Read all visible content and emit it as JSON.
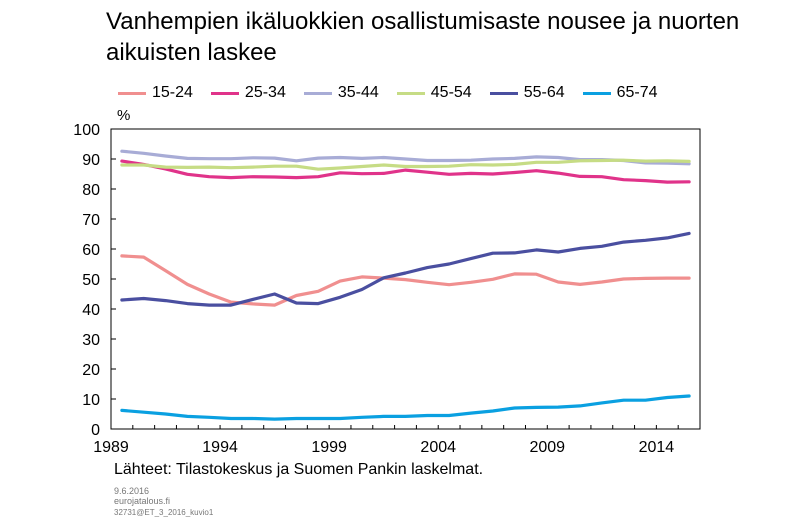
{
  "title": "Vanhempien ikäluokkien osallistumisaste nousee ja nuorten aikuisten laskee",
  "unit": "%",
  "source": "Lähteet: Tilastokeskus ja Suomen Pankin laskelmat.",
  "footer": {
    "date": "9.6.2016",
    "site": "eurojatalous.fi",
    "code": "32731@ET_3_2016_kuvio1"
  },
  "chart_data": {
    "type": "line",
    "x": [
      1989,
      1990,
      1991,
      1992,
      1993,
      1994,
      1995,
      1996,
      1997,
      1998,
      1999,
      2000,
      2001,
      2002,
      2003,
      2004,
      2005,
      2006,
      2007,
      2008,
      2009,
      2010,
      2011,
      2012,
      2013,
      2014,
      2015
    ],
    "xticks": [
      1989,
      1994,
      1999,
      2004,
      2009,
      2014
    ],
    "xlim": [
      1989,
      2016
    ],
    "ylim": [
      0,
      100
    ],
    "yticks": [
      0,
      10,
      20,
      30,
      40,
      50,
      60,
      70,
      80,
      90,
      100
    ],
    "grid": false,
    "legend_position": "top",
    "series": [
      {
        "name": "15-24",
        "color": "#f08f8f",
        "values": [
          57.7,
          57.3,
          52.8,
          48.2,
          45.0,
          42.3,
          41.7,
          41.3,
          44.5,
          45.9,
          49.3,
          50.7,
          50.3,
          49.8,
          48.9,
          48.1,
          48.9,
          49.9,
          51.7,
          51.6,
          49.0,
          48.2,
          49.0,
          50.0,
          50.2,
          50.3,
          50.3
        ]
      },
      {
        "name": "25-34",
        "color": "#e0338a",
        "values": [
          89.3,
          88.2,
          86.7,
          84.9,
          84.1,
          83.8,
          84.1,
          84.0,
          83.8,
          84.1,
          85.4,
          85.1,
          85.2,
          86.3,
          85.6,
          84.9,
          85.2,
          85.0,
          85.5,
          86.1,
          85.3,
          84.2,
          84.1,
          83.1,
          82.8,
          82.3,
          82.4
        ]
      },
      {
        "name": "35-44",
        "color": "#a8acd6",
        "values": [
          92.6,
          91.9,
          91.0,
          90.2,
          90.1,
          90.1,
          90.4,
          90.3,
          89.4,
          90.3,
          90.5,
          90.2,
          90.5,
          90.0,
          89.5,
          89.5,
          89.6,
          90.0,
          90.2,
          90.7,
          90.5,
          89.8,
          89.8,
          89.5,
          88.7,
          88.6,
          88.4
        ]
      },
      {
        "name": "45-54",
        "color": "#c6dc85",
        "values": [
          88.0,
          88.0,
          87.3,
          87.2,
          87.3,
          87.1,
          87.3,
          87.6,
          87.6,
          86.6,
          87.0,
          87.5,
          88.0,
          87.5,
          87.5,
          87.6,
          88.1,
          88.0,
          88.2,
          88.9,
          88.9,
          89.4,
          89.5,
          89.6,
          89.3,
          89.4,
          89.2
        ]
      },
      {
        "name": "55-64",
        "color": "#4a4fa0",
        "values": [
          43.0,
          43.5,
          42.8,
          41.8,
          41.3,
          41.3,
          43.2,
          45.0,
          42.0,
          41.8,
          43.9,
          46.5,
          50.4,
          52.0,
          53.8,
          55.0,
          56.8,
          58.6,
          58.7,
          59.7,
          59.0,
          60.2,
          60.9,
          62.3,
          62.9,
          63.7,
          65.2
        ]
      },
      {
        "name": "65-74",
        "color": "#0aa0e1",
        "values": [
          6.2,
          5.6,
          5.0,
          4.2,
          3.9,
          3.5,
          3.5,
          3.3,
          3.5,
          3.5,
          3.5,
          3.9,
          4.2,
          4.2,
          4.5,
          4.5,
          5.3,
          6.0,
          7.0,
          7.2,
          7.3,
          7.7,
          8.7,
          9.6,
          9.6,
          10.5,
          11.0
        ]
      }
    ]
  }
}
